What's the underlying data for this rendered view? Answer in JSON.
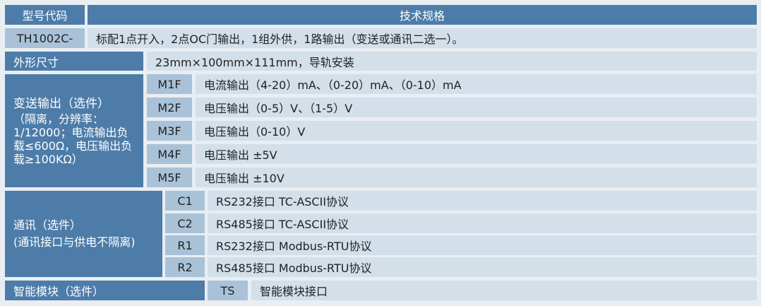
{
  "header": {
    "model_code": "型号代码",
    "spec": "技术规格"
  },
  "model": {
    "code": "TH1002C-",
    "desc": "标配1点开入，2点OC门输出，1组外供，1路输出（变送或通讯二选一）。"
  },
  "dimensions": {
    "label": "外形尺寸",
    "value": "23mm×100mm×111mm，导轨安装"
  },
  "transmit": {
    "label": "变送输出（选件）",
    "notes": [
      "（隔离，分辨率：",
      "1/12000；电流输出负",
      "载≤600Ω，电压输出负",
      "载≥100KΩ）"
    ],
    "options": [
      {
        "code": "M1F",
        "desc": "电流输出（4-20）mA、（0-20）mA、（0-10）mA"
      },
      {
        "code": "M2F",
        "desc": "电压输出（0-5）V、（1-5）V"
      },
      {
        "code": "M3F",
        "desc": "电压输出（0-10）V"
      },
      {
        "code": "M4F",
        "desc": "电压输出 ±5V"
      },
      {
        "code": "M5F",
        "desc": "电压输出 ±10V"
      }
    ]
  },
  "comm": {
    "label": "通讯（选件）",
    "note": "(通讯接口与供电不隔离)",
    "options": [
      {
        "code": "C1",
        "desc": "RS232接口 TC-ASCII协议"
      },
      {
        "code": "C2",
        "desc": "RS485接口 TC-ASCII协议"
      },
      {
        "code": "R1",
        "desc": "RS232接口 Modbus-RTU协议"
      },
      {
        "code": "R2",
        "desc": "RS485接口 Modbus-RTU协议"
      }
    ]
  },
  "smart": {
    "label": "智能模块（选件）",
    "code": "TS",
    "desc": "智能模块接口"
  }
}
